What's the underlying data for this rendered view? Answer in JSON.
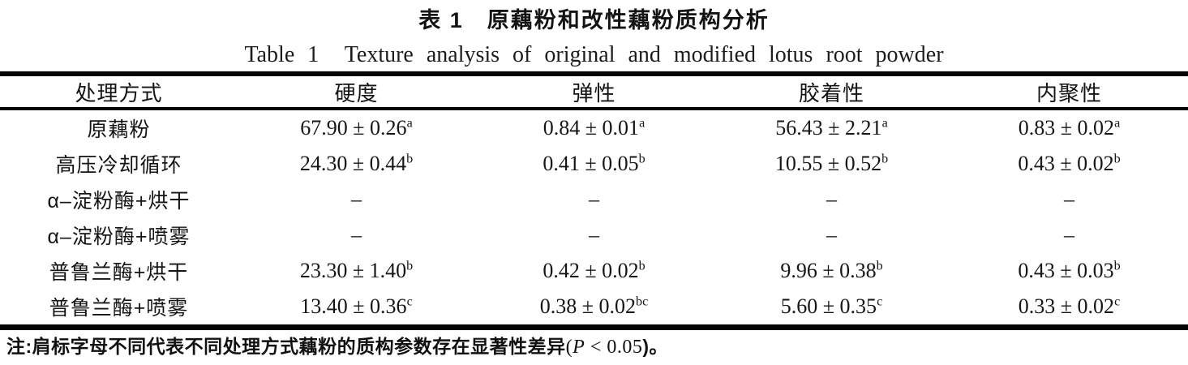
{
  "page": {
    "background": "#ffffff",
    "text_color": "#141414",
    "rule_color": "#050505"
  },
  "captions": {
    "zh": "表 1　原藕粉和改性藕粉质构分析",
    "en": "Table 1  Texture analysis of original and modified lotus root powder"
  },
  "table": {
    "columns": [
      "处理方式",
      "硬度",
      "弹性",
      "胶着性",
      "内聚性"
    ],
    "rows": [
      {
        "label": "原藕粉",
        "cells": [
          {
            "v": "67.90 ± 0.26",
            "s": "a"
          },
          {
            "v": "0.84 ± 0.01",
            "s": "a"
          },
          {
            "v": "56.43 ± 2.21",
            "s": "a"
          },
          {
            "v": "0.83 ± 0.02",
            "s": "a"
          }
        ]
      },
      {
        "label": "高压冷却循环",
        "cells": [
          {
            "v": "24.30 ± 0.44",
            "s": "b"
          },
          {
            "v": "0.41 ± 0.05",
            "s": "b"
          },
          {
            "v": "10.55 ± 0.52",
            "s": "b"
          },
          {
            "v": "0.43 ± 0.02",
            "s": "b"
          }
        ]
      },
      {
        "label": "α–淀粉酶+烘干",
        "cells": [
          {
            "v": "–",
            "s": ""
          },
          {
            "v": "–",
            "s": ""
          },
          {
            "v": "–",
            "s": ""
          },
          {
            "v": "–",
            "s": ""
          }
        ]
      },
      {
        "label": "α–淀粉酶+喷雾",
        "cells": [
          {
            "v": "–",
            "s": ""
          },
          {
            "v": "–",
            "s": ""
          },
          {
            "v": "–",
            "s": ""
          },
          {
            "v": "–",
            "s": ""
          }
        ]
      },
      {
        "label": "普鲁兰酶+烘干",
        "cells": [
          {
            "v": "23.30 ± 1.40",
            "s": "b"
          },
          {
            "v": "0.42 ± 0.02",
            "s": "b"
          },
          {
            "v": "9.96 ± 0.38",
            "s": "b"
          },
          {
            "v": "0.43 ± 0.03",
            "s": "b"
          }
        ]
      },
      {
        "label": "普鲁兰酶+喷雾",
        "cells": [
          {
            "v": "13.40 ± 0.36",
            "s": "c"
          },
          {
            "v": "0.38 ± 0.02",
            "s": "bc"
          },
          {
            "v": "5.60 ± 0.35",
            "s": "c"
          },
          {
            "v": "0.33 ± 0.02",
            "s": "c"
          }
        ]
      }
    ]
  },
  "footnote": {
    "zh": "注:肩标字母不同代表不同处理方式藕粉的质构参数存在显著性差异",
    "open_paren": "(",
    "p_symbol": "P",
    "condition": " < 0.05",
    "close": ")。"
  },
  "chart_data": {
    "type": "table",
    "title": "表1 原藕粉和改性藕粉质构分析 / Table 1 Texture analysis of original and modified lotus root powder",
    "columns": [
      "处理方式",
      "硬度",
      "弹性",
      "胶着性",
      "内聚性"
    ],
    "rows": [
      [
        "原藕粉",
        "67.90 ± 0.26^a",
        "0.84 ± 0.01^a",
        "56.43 ± 2.21^a",
        "0.83 ± 0.02^a"
      ],
      [
        "高压冷却循环",
        "24.30 ± 0.44^b",
        "0.41 ± 0.05^b",
        "10.55 ± 0.52^b",
        "0.43 ± 0.02^b"
      ],
      [
        "α–淀粉酶+烘干",
        "–",
        "–",
        "–",
        "–"
      ],
      [
        "α–淀粉酶+喷雾",
        "–",
        "–",
        "–",
        "–"
      ],
      [
        "普鲁兰酶+烘干",
        "23.30 ± 1.40^b",
        "0.42 ± 0.02^b",
        "9.96 ± 0.38^b",
        "0.43 ± 0.03^b"
      ],
      [
        "普鲁兰酶+喷雾",
        "13.40 ± 0.36^c",
        "0.38 ± 0.02^bc",
        "5.60 ± 0.35^c",
        "0.33 ± 0.02^c"
      ]
    ],
    "note": "注:肩标字母不同代表不同处理方式藕粉的质构参数存在显著性差异(P < 0.05)。"
  }
}
